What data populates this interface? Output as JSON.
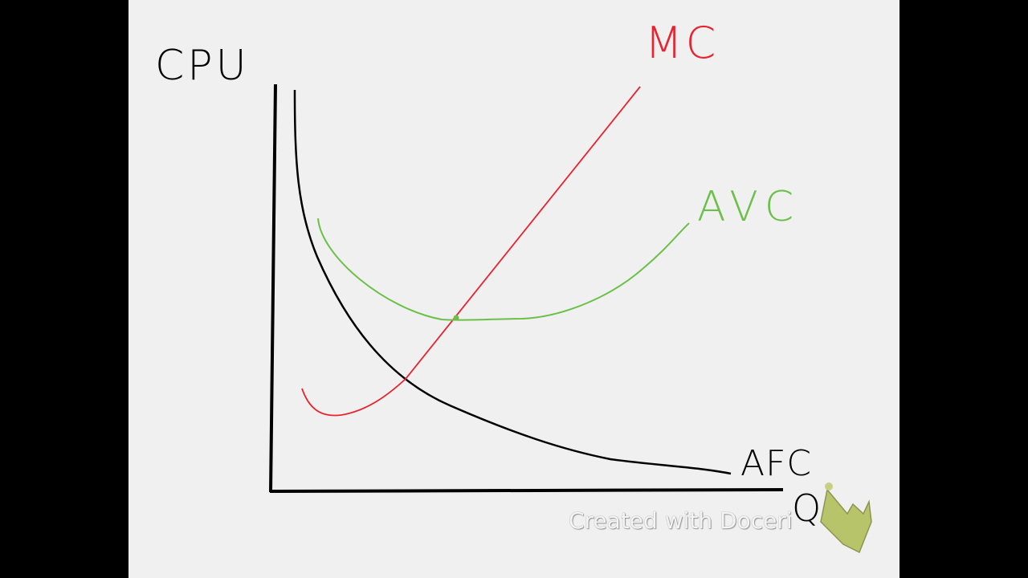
{
  "labels": {
    "y_axis": "CPU",
    "x_axis": "Q",
    "mc": "MC",
    "avc": "AVC",
    "afc": "AFC"
  },
  "colors": {
    "background": "#f0f0f0",
    "axes": "#000000",
    "mc": "#e8232f",
    "avc": "#6cc04a",
    "afc": "#000000"
  },
  "watermark": {
    "text": "Created with Doceri",
    "icon": "hand-pointer-icon"
  }
}
